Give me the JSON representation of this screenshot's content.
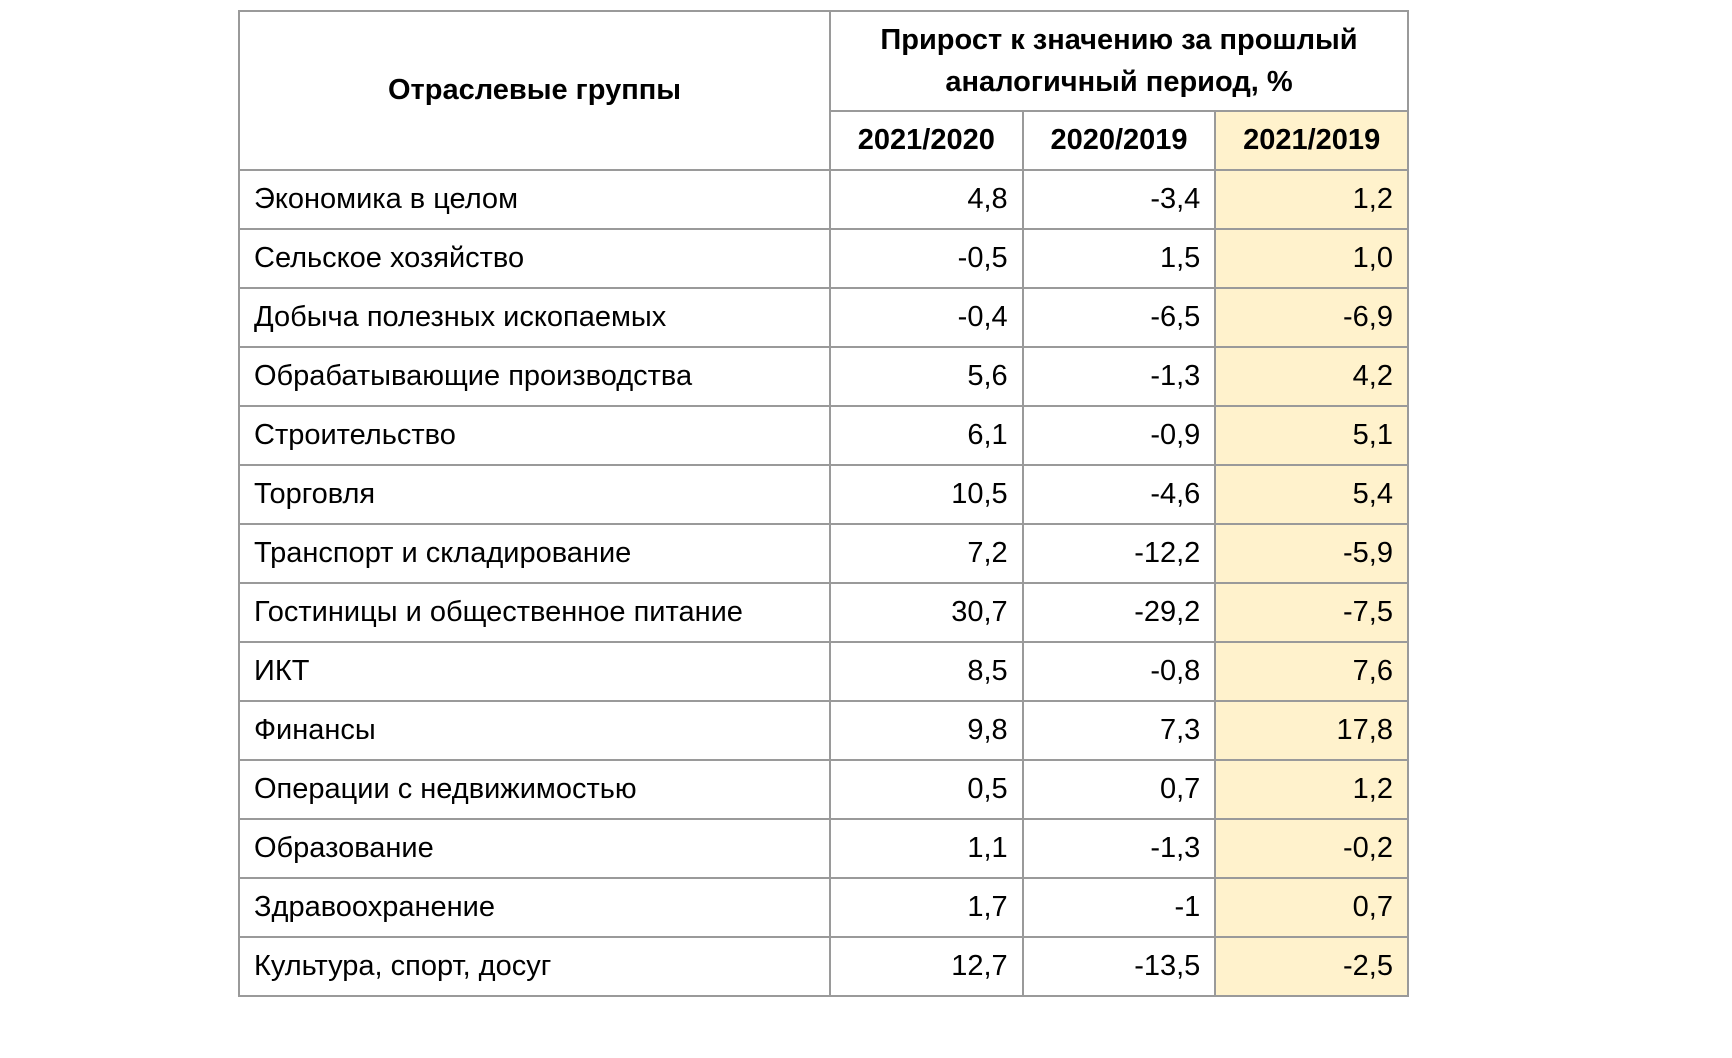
{
  "table": {
    "group_header": "Отраслевые группы",
    "growth_header": "Прирост к значению за прошлый аналогичный период, %",
    "columns": [
      "2021/2020",
      "2020/2019",
      "2021/2019"
    ],
    "highlight_color": "#fff2cc",
    "rows": [
      {
        "name": "Экономика в целом",
        "v": [
          "4,8",
          "-3,4",
          "1,2"
        ]
      },
      {
        "name": "Сельское хозяйство",
        "v": [
          "-0,5",
          "1,5",
          "1,0"
        ]
      },
      {
        "name": "Добыча полезных ископаемых",
        "v": [
          "-0,4",
          "-6,5",
          "-6,9"
        ]
      },
      {
        "name": "Обрабатывающие производства",
        "v": [
          "5,6",
          "-1,3",
          "4,2"
        ]
      },
      {
        "name": "Строительство",
        "v": [
          "6,1",
          "-0,9",
          "5,1"
        ]
      },
      {
        "name": "Торговля",
        "v": [
          "10,5",
          "-4,6",
          "5,4"
        ]
      },
      {
        "name": "Транспорт и складирование",
        "v": [
          "7,2",
          "-12,2",
          "-5,9"
        ]
      },
      {
        "name": "Гостиницы и общественное питание",
        "v": [
          "30,7",
          "-29,2",
          "-7,5"
        ]
      },
      {
        "name": "ИКТ",
        "v": [
          "8,5",
          "-0,8",
          "7,6"
        ]
      },
      {
        "name": "Финансы",
        "v": [
          "9,8",
          "7,3",
          "17,8"
        ]
      },
      {
        "name": "Операции с недвижимостью",
        "v": [
          "0,5",
          "0,7",
          "1,2"
        ]
      },
      {
        "name": "Образование",
        "v": [
          "1,1",
          "-1,3",
          "-0,2"
        ]
      },
      {
        "name": "Здравоохранение",
        "v": [
          "1,7",
          "-1",
          "0,7"
        ]
      },
      {
        "name": "Культура, спорт, досуг",
        "v": [
          "12,7",
          "-13,5",
          "-2,5"
        ]
      }
    ]
  }
}
